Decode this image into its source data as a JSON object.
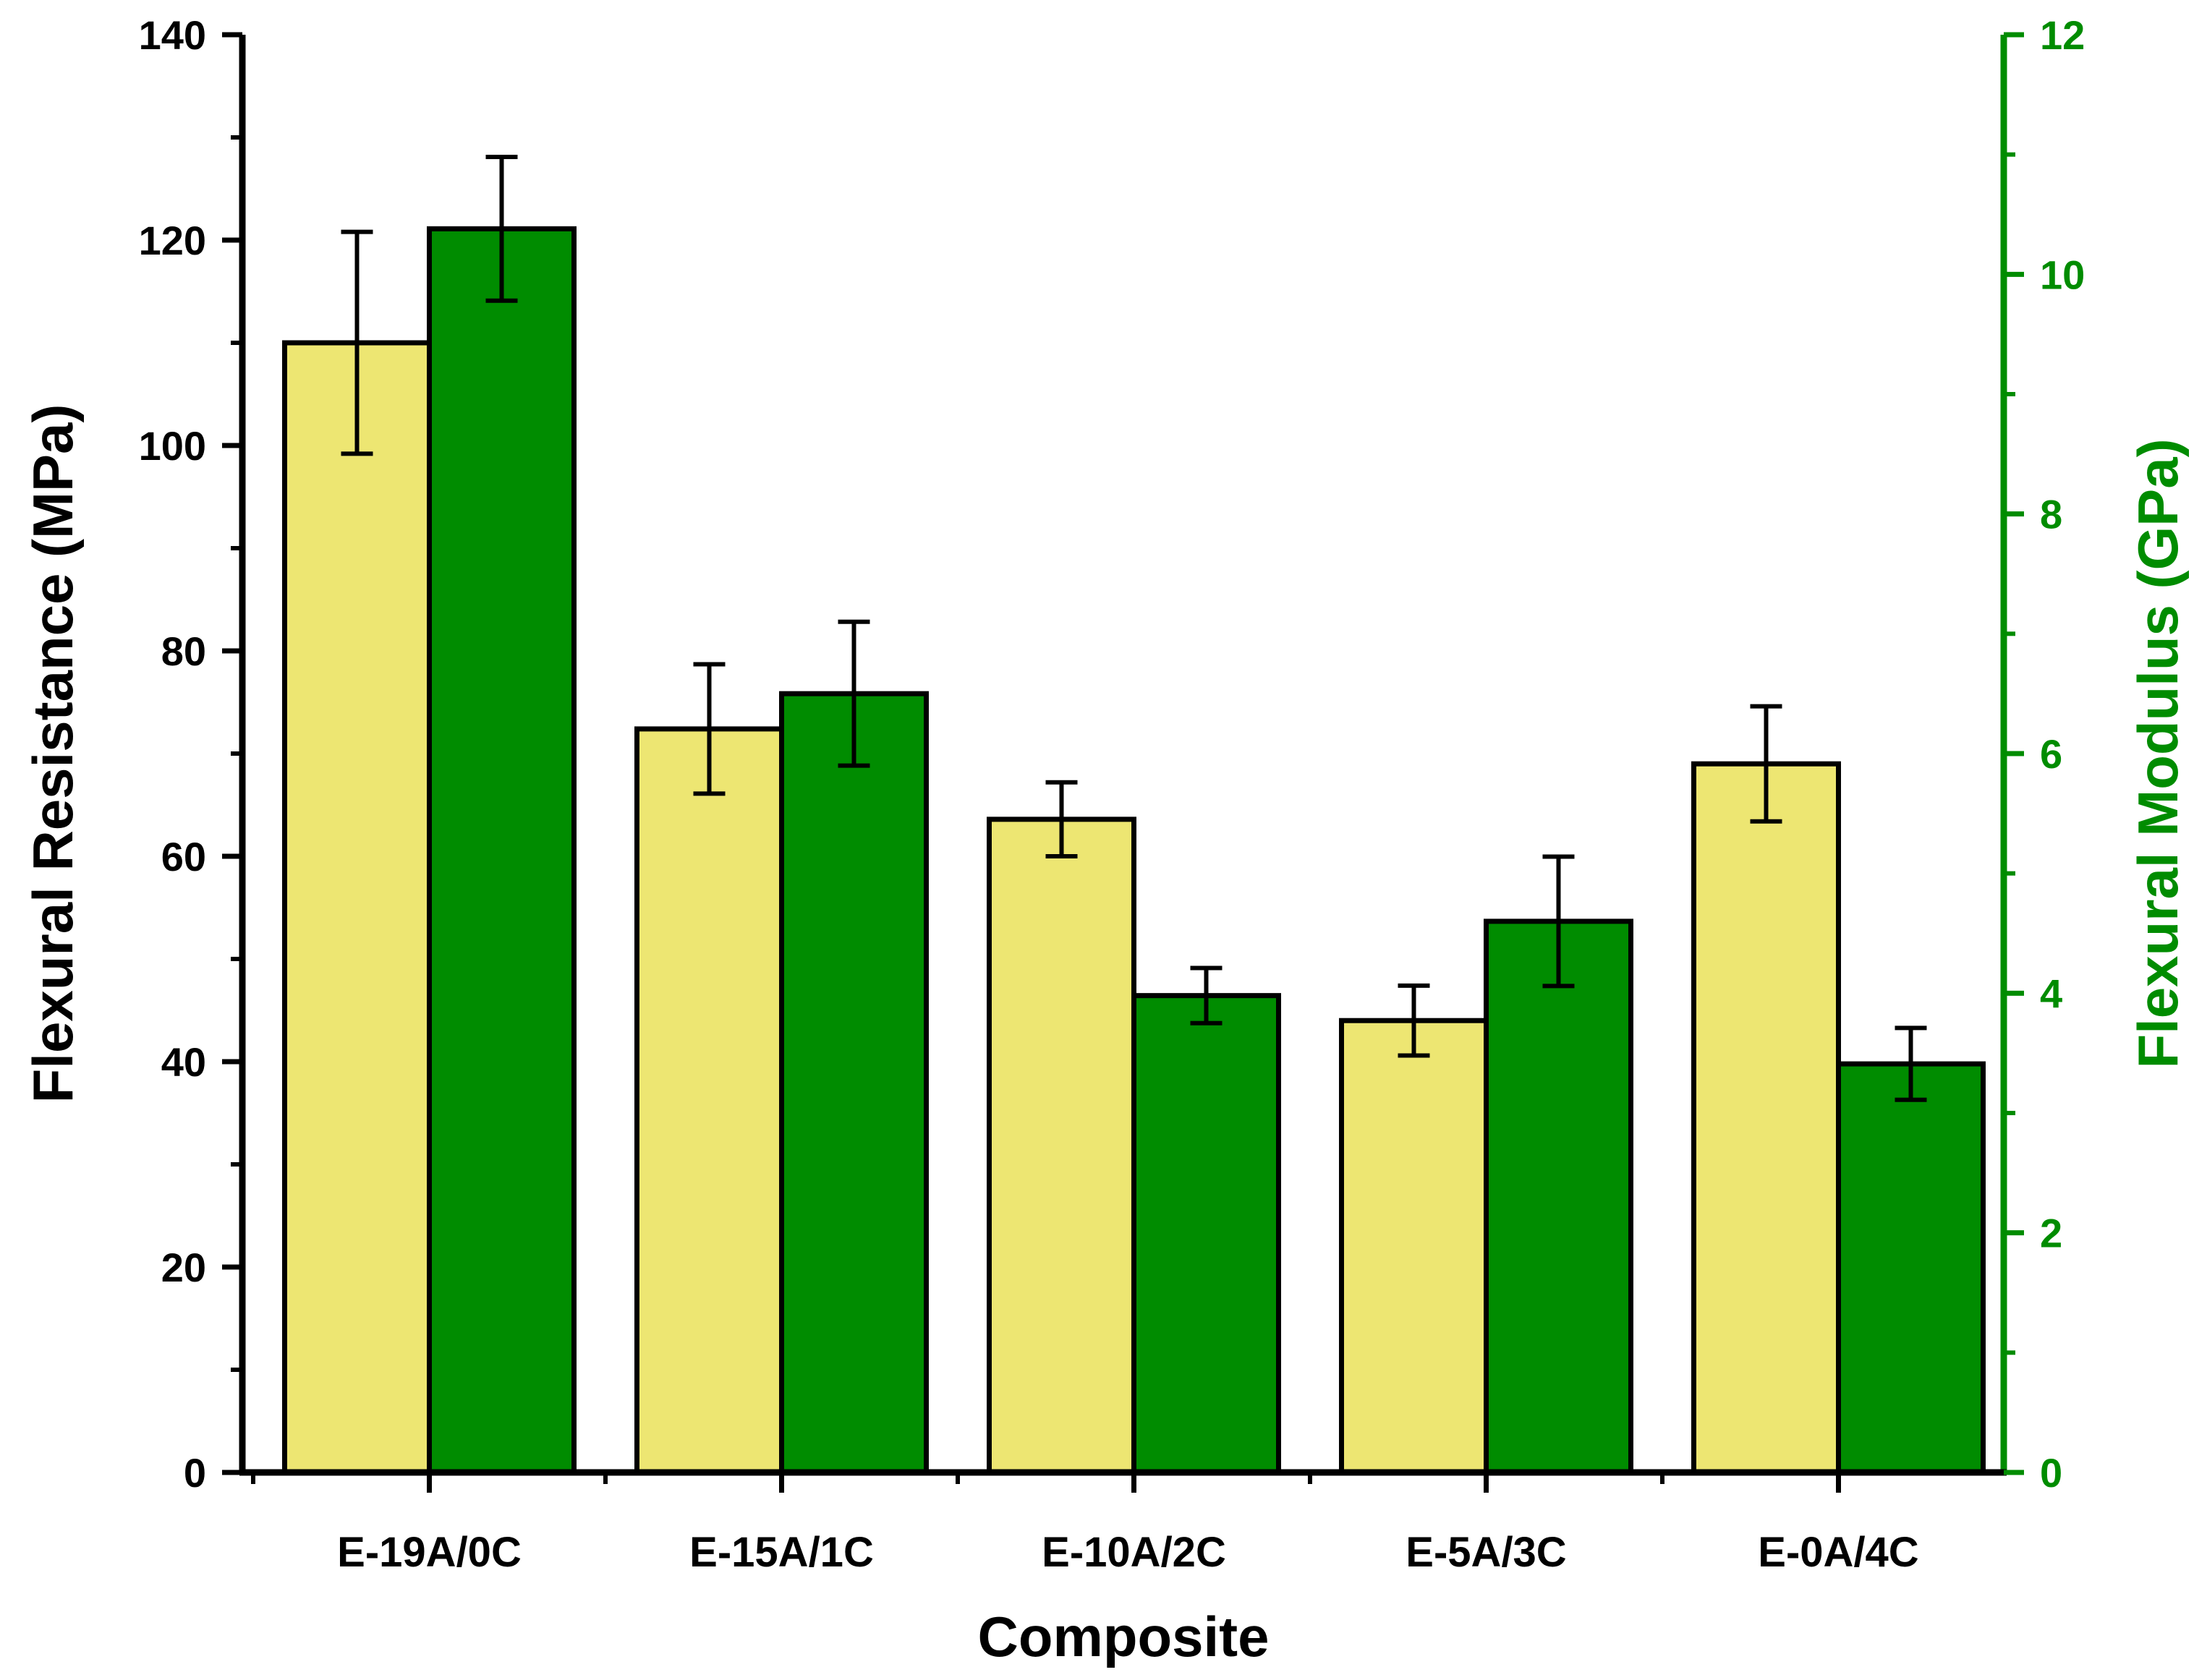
{
  "chart_data": {
    "type": "bar",
    "xlabel": "Composite",
    "ylabel": "Flexural Resistance (MPa)",
    "y2label": "Flexural Modulus (GPa)",
    "categories": [
      "E-19A/0C",
      "E-15A/1C",
      "E-10A/2C",
      "E-5A/3C",
      "E-0A/4C"
    ],
    "ylim": [
      0,
      140
    ],
    "y2lim": [
      0,
      12
    ],
    "yticks": [
      "0",
      "20",
      "40",
      "60",
      "80",
      "100",
      "120",
      "140"
    ],
    "y2ticks": [
      "0",
      "2",
      "4",
      "6",
      "8",
      "10",
      "12"
    ],
    "grid": false,
    "legend": "none",
    "series": [
      {
        "name": "Flexural Resistance (MPa)",
        "axis": "left",
        "color": "#EDE672",
        "values": [
          110,
          72.4,
          63.6,
          44,
          69
        ],
        "errors": [
          10.8,
          6.3,
          3.6,
          3.4,
          5.6
        ]
      },
      {
        "name": "Flexural Modulus (GPa)",
        "axis": "right",
        "color": "#008C00",
        "values": [
          10.38,
          6.5,
          3.98,
          4.6,
          3.41
        ],
        "errors": [
          0.6,
          0.6,
          0.23,
          0.54,
          0.3
        ]
      }
    ],
    "colors": {
      "left_axis": "#000000",
      "right_axis": "#008C00"
    }
  }
}
